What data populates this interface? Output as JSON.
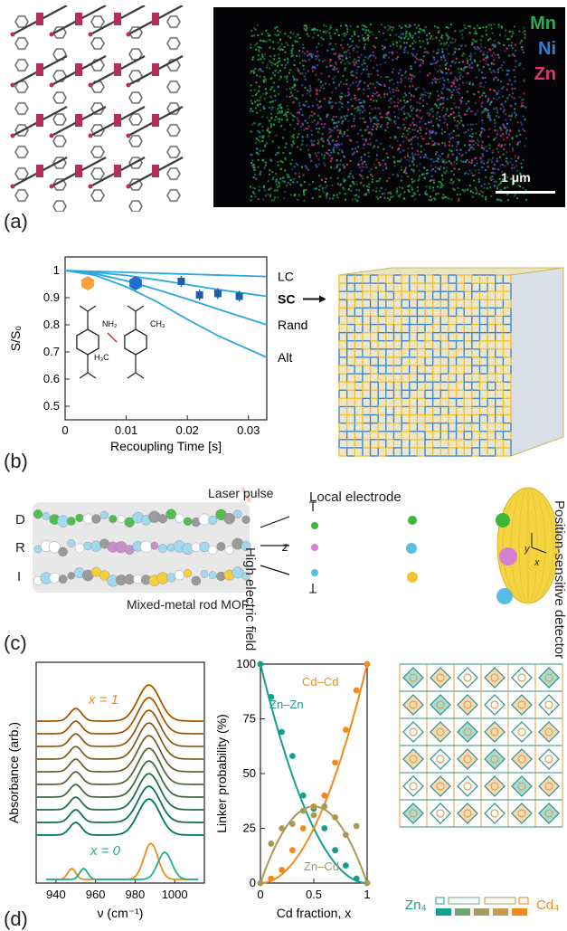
{
  "panel_labels": {
    "a": "(a)",
    "b": "(b)",
    "c": "(c)",
    "d": "(d)"
  },
  "panel_a": {
    "legend": [
      "Mn",
      "Ni",
      "Zn"
    ],
    "legend_colors": [
      "#22b14c",
      "#2f7fd6",
      "#e8317a"
    ],
    "scale_bar": "1 μm"
  },
  "panel_b": {
    "chart_data": {
      "type": "line",
      "ylabel": "S/S₀",
      "xlabel": "Recoupling Time [s]",
      "xlim": [
        0,
        0.033
      ],
      "ylim": [
        0.45,
        1.05
      ],
      "xticks": [
        "0",
        "0.01",
        "0.02",
        "0.03"
      ],
      "yticks": [
        "0.5",
        "0.6",
        "0.7",
        "0.8",
        "0.9",
        "1"
      ],
      "series": [
        {
          "name": "LC",
          "x": [
            0,
            0.033
          ],
          "y": [
            1.0,
            0.978
          ]
        },
        {
          "name": "SC",
          "x": [
            0,
            0.005,
            0.01,
            0.015,
            0.02,
            0.025,
            0.033
          ],
          "y": [
            1.0,
            0.993,
            0.982,
            0.966,
            0.948,
            0.93,
            0.905
          ]
        },
        {
          "name": "Rand",
          "x": [
            0,
            0.005,
            0.01,
            0.015,
            0.02,
            0.025,
            0.033
          ],
          "y": [
            1.0,
            0.988,
            0.962,
            0.93,
            0.895,
            0.858,
            0.8
          ]
        },
        {
          "name": "Alt",
          "x": [
            0,
            0.005,
            0.01,
            0.015,
            0.02,
            0.025,
            0.033
          ],
          "y": [
            1.0,
            0.982,
            0.94,
            0.885,
            0.82,
            0.76,
            0.68
          ]
        }
      ],
      "points": {
        "x": [
          0.019,
          0.022,
          0.025,
          0.0285
        ],
        "y": [
          0.96,
          0.91,
          0.915,
          0.905
        ],
        "err": [
          0.02,
          0.02,
          0.02,
          0.02
        ]
      }
    },
    "curve_labels": [
      "LC",
      "SC",
      "Rand",
      "Alt"
    ],
    "molecule_labels": {
      "nh2": "NH₂",
      "ch3": "CH₃",
      "h3c": "H₃C"
    }
  },
  "panel_c": {
    "row_labels": [
      "D",
      "R",
      "I"
    ],
    "laser": "Laser pulse",
    "electrode": "Local electrode",
    "field": "High electric field",
    "z": "z",
    "detector": "Position-sensitive detector",
    "y": "y",
    "x": "x",
    "caption": "Mixed-metal rod MOF"
  },
  "panel_d": {
    "spectra": {
      "ylabel": "Absorbance (arb.)",
      "xlabel": "ν (cm⁻¹)",
      "xticks": [
        "940",
        "960",
        "980",
        "1000"
      ],
      "label_x1": "x = 1",
      "label_x0": "x = 0"
    },
    "chart_data": {
      "type": "scatter",
      "xlabel": "Cd fraction, x",
      "ylabel": "Linker probability (%)",
      "xlim": [
        0,
        1
      ],
      "ylim": [
        0,
        100
      ],
      "xticks": [
        "0",
        "0.5",
        "1"
      ],
      "yticks": [
        "0",
        "25",
        "50",
        "75",
        "100"
      ],
      "series": [
        {
          "name": "Zn–Zn",
          "x": [
            0,
            0.1,
            0.2,
            0.3,
            0.4,
            0.5,
            0.6,
            0.7,
            0.8,
            0.9,
            1.0
          ],
          "y": [
            100,
            85,
            69,
            58,
            40,
            34,
            25,
            15,
            8,
            2,
            0
          ]
        },
        {
          "name": "Cd–Cd",
          "x": [
            0,
            0.1,
            0.2,
            0.3,
            0.4,
            0.5,
            0.6,
            0.7,
            0.8,
            0.9,
            1.0
          ],
          "y": [
            0,
            2,
            6,
            15,
            25,
            35,
            40,
            55,
            70,
            88,
            100
          ]
        },
        {
          "name": "Zn–Cd",
          "x": [
            0,
            0.1,
            0.2,
            0.3,
            0.4,
            0.5,
            0.6,
            0.7,
            0.8,
            0.9,
            1.0
          ],
          "y": [
            0,
            18,
            25,
            27,
            33,
            31,
            35,
            30,
            22,
            26,
            0
          ]
        }
      ]
    },
    "lattice_legend": {
      "left": "Zn₄",
      "right": "Cd₄"
    }
  }
}
